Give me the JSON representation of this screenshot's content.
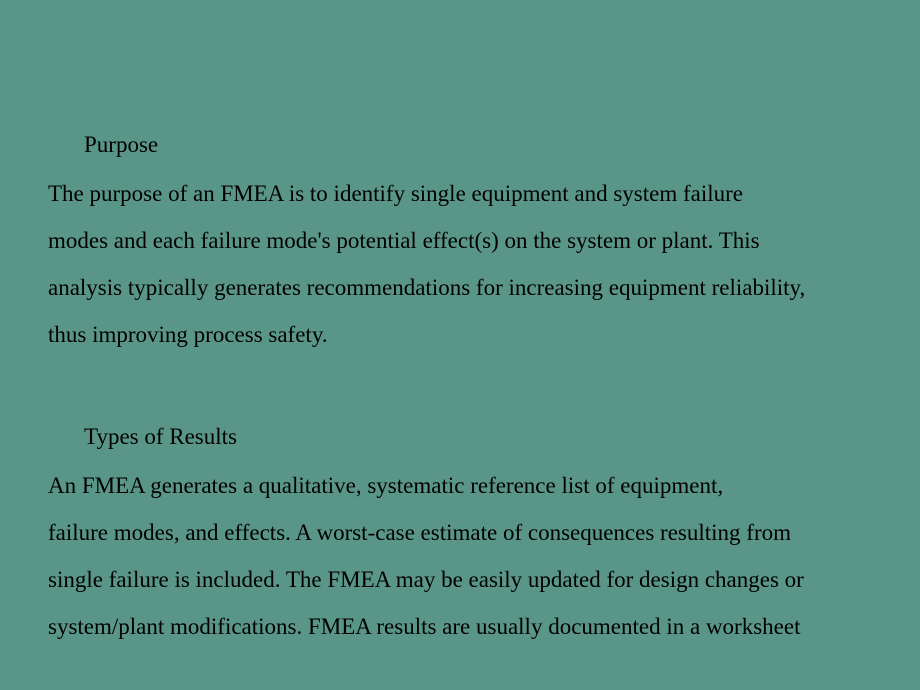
{
  "background_color": "#5a9687",
  "text_color": "#000000",
  "font_family": "Georgia, Times New Roman, serif",
  "font_size_pt": 17,
  "sections": {
    "purpose": {
      "heading": "Purpose",
      "lines": [
        "The purpose of an FMEA is to identify single equipment and system failure",
        "modes and each failure mode's potential effect(s) on the system or plant. This",
        "analysis typically generates recommendations for increasing equipment reliability,",
        "thus improving process safety."
      ]
    },
    "types_of_results": {
      "heading": "Types of Results",
      "lines": [
        "An FMEA generates a qualitative, systematic reference list of equipment,",
        "failure modes, and effects. A worst-case estimate of consequences resulting from",
        "single failure is included. The FMEA may be easily updated for design changes or",
        "system/plant modifications. FMEA results are usually documented in a worksheet"
      ]
    }
  }
}
